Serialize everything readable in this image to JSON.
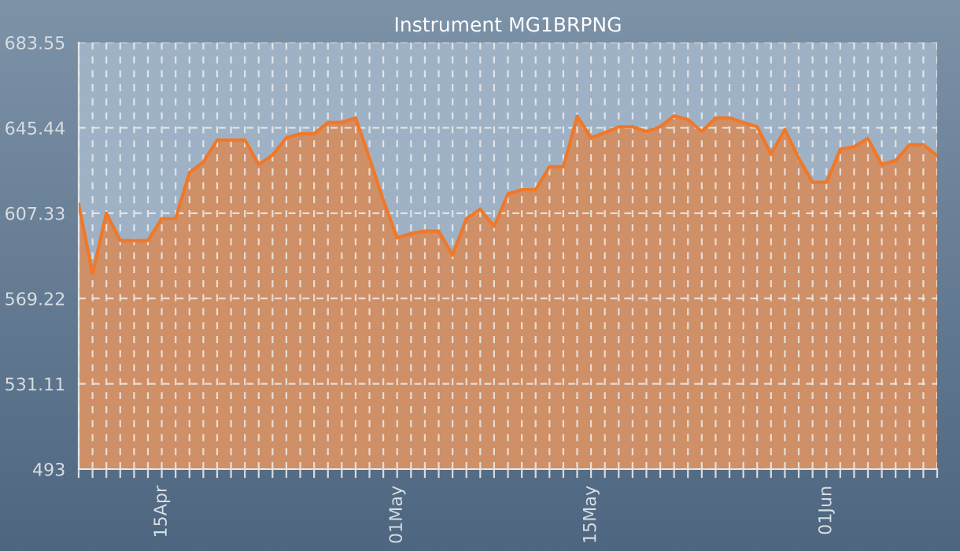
{
  "chart_data": {
    "type": "area",
    "title": "Instrument MG1BRPNG",
    "categories": [
      null,
      null,
      null,
      null,
      null,
      null,
      "15Apr",
      null,
      null,
      null,
      null,
      null,
      null,
      null,
      null,
      null,
      null,
      null,
      null,
      null,
      null,
      null,
      null,
      "01May",
      null,
      null,
      null,
      null,
      null,
      null,
      null,
      null,
      null,
      null,
      null,
      null,
      null,
      "15May",
      null,
      null,
      null,
      null,
      null,
      null,
      null,
      null,
      null,
      null,
      null,
      null,
      null,
      null,
      null,
      null,
      "01Jun",
      null,
      null,
      null,
      null,
      null,
      null,
      null,
      null
    ],
    "series": [
      {
        "color": "#f07828",
        "values": [
          611.3,
          580.4,
          607.3,
          595.1,
          595.1,
          595.1,
          604.9,
          604.9,
          625.5,
          630.2,
          640.0,
          640.0,
          640.0,
          629.1,
          633.3,
          641.0,
          642.8,
          642.8,
          647.8,
          647.8,
          649.9,
          631.9,
          613.1,
          596.3,
          598.2,
          599.3,
          599.3,
          588.6,
          604.9,
          609.1,
          601.4,
          615.9,
          617.8,
          617.8,
          628.1,
          628.1,
          650.6,
          641.0,
          643.3,
          645.9,
          645.9,
          643.8,
          645.9,
          650.8,
          649.2,
          643.8,
          649.9,
          649.9,
          647.8,
          645.9,
          633.7,
          644.7,
          631.9,
          621.1,
          621.1,
          635.8,
          637.0,
          640.7,
          629.1,
          630.9,
          637.9,
          637.9,
          633.0
        ]
      }
    ],
    "ylim": [
      493,
      683.55
    ],
    "yticks": [
      493,
      531.11,
      569.22,
      607.33,
      645.44,
      683.55
    ],
    "grid": true,
    "legend": false
  }
}
